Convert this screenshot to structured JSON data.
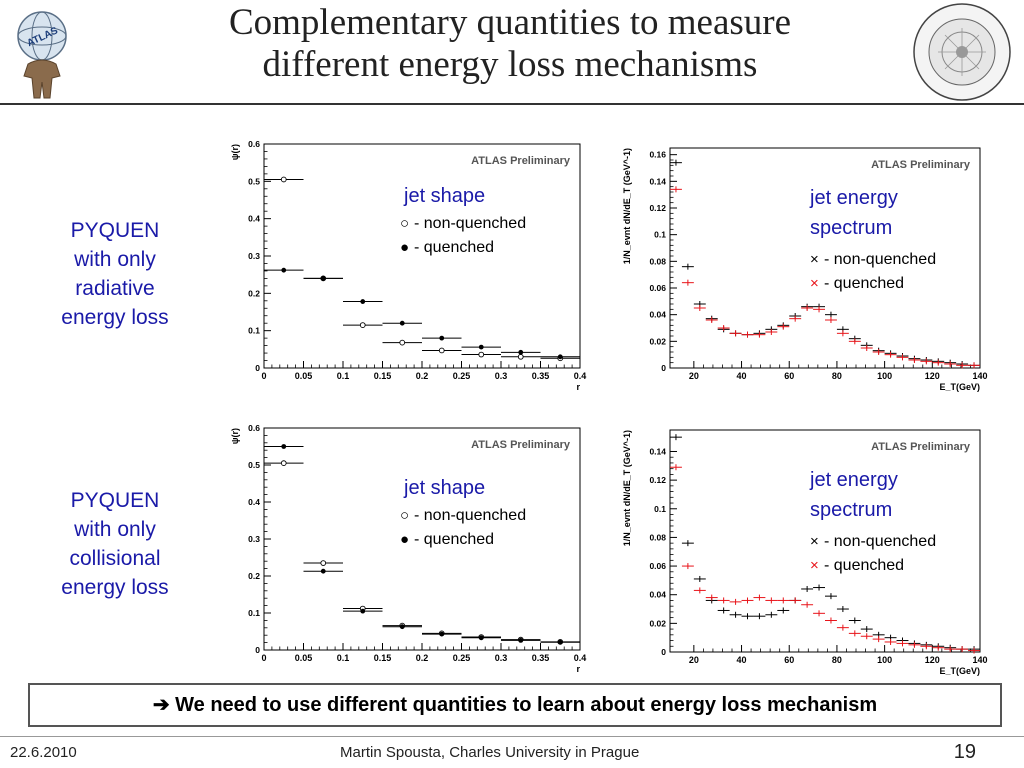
{
  "slide": {
    "title_line1": "Complementary quantities to measure",
    "title_line2": "different energy loss mechanisms",
    "row_labels": [
      "PYQUEN\nwith only\nradiative\nenergy loss",
      "PYQUEN\nwith only\ncollisional\nenergy loss"
    ],
    "callout": "➔ We need to use different quantities to learn about energy loss mechanism",
    "footer_date": "22.6.2010",
    "footer_author": "Martin Spousta,  Charles University in Prague",
    "page_number": "19",
    "logo_left_text": "ATLAS",
    "logo_right_text": "FACULTAS MATHEMATICA PHYSICAQUE"
  },
  "colors": {
    "label_blue": "#1a1aa8",
    "quenched_red": "#e8141a",
    "marker": "#000000"
  },
  "chart_data": [
    {
      "id": "jet-shape-radiative",
      "type": "scatter",
      "ylabel": "ψ(r)",
      "xlabel": "r",
      "xlim": [
        0,
        0.4
      ],
      "ylim": [
        0,
        0.6
      ],
      "xticks": [
        0,
        0.05,
        0.1,
        0.15,
        0.2,
        0.25,
        0.3,
        0.35,
        0.4
      ],
      "yticks": [
        0,
        0.1,
        0.2,
        0.3,
        0.4,
        0.5,
        0.6
      ],
      "x_tick_labels": [
        "0",
        "0.05",
        "0.1",
        "0.15",
        "0.2",
        "0.25",
        "0.3",
        "0.35",
        "0.4"
      ],
      "y_tick_labels": [
        "0",
        "0.1",
        "0.2",
        "0.3",
        "0.4",
        "0.5",
        "0.6"
      ],
      "annotation": "ATLAS Preliminary",
      "legend_title": "jet shape",
      "x": [
        0.025,
        0.075,
        0.125,
        0.175,
        0.225,
        0.275,
        0.325,
        0.375
      ],
      "series": [
        {
          "name": "- non-quenched",
          "symbol": "○",
          "marker": "open-circle",
          "values": [
            0.505,
            0.24,
            0.115,
            0.068,
            0.047,
            0.036,
            0.03,
            0.026
          ]
        },
        {
          "name": "- quenched",
          "symbol": "●",
          "marker": "filled-circle",
          "values": [
            0.262,
            0.24,
            0.178,
            0.12,
            0.08,
            0.056,
            0.042,
            0.03
          ]
        }
      ],
      "grid": false,
      "legend_position": "top-right"
    },
    {
      "id": "jet-energy-radiative",
      "type": "scatter",
      "ylabel": "1/N_evnt dN/dE_T (GeV^-1)",
      "xlabel": "E_T(GeV)",
      "xlim": [
        10,
        140
      ],
      "ylim": [
        0,
        0.165
      ],
      "xticks": [
        20,
        40,
        60,
        80,
        100,
        120,
        140
      ],
      "yticks": [
        0,
        0.02,
        0.04,
        0.06,
        0.08,
        0.1,
        0.12,
        0.14,
        0.16
      ],
      "x_tick_labels": [
        "20",
        "40",
        "60",
        "80",
        "100",
        "120",
        "140"
      ],
      "y_tick_labels": [
        "0",
        "0.02",
        "0.04",
        "0.06",
        "0.08",
        "0.1",
        "0.12",
        "0.14",
        "0.16"
      ],
      "annotation": "ATLAS Preliminary",
      "legend_title": "jet energy spectrum",
      "x": [
        12.5,
        17.5,
        22.5,
        27.5,
        32.5,
        37.5,
        42.5,
        47.5,
        52.5,
        57.5,
        62.5,
        67.5,
        72.5,
        77.5,
        82.5,
        87.5,
        92.5,
        97.5,
        102.5,
        107.5,
        112.5,
        117.5,
        122.5,
        127.5,
        132.5,
        137.5
      ],
      "series": [
        {
          "name": "- non-quenched",
          "symbol": "×",
          "marker": "black-cross",
          "values": [
            0.154,
            0.076,
            0.048,
            0.037,
            0.029,
            0.026,
            0.025,
            0.026,
            0.029,
            0.032,
            0.039,
            0.046,
            0.046,
            0.04,
            0.029,
            0.022,
            0.017,
            0.013,
            0.011,
            0.009,
            0.007,
            0.006,
            0.005,
            0.004,
            0.003,
            0.002
          ]
        },
        {
          "name": "- quenched",
          "symbol": "×",
          "marker": "red-cross",
          "values": [
            0.134,
            0.064,
            0.045,
            0.036,
            0.03,
            0.026,
            0.025,
            0.025,
            0.027,
            0.031,
            0.037,
            0.045,
            0.044,
            0.036,
            0.026,
            0.02,
            0.015,
            0.012,
            0.01,
            0.008,
            0.006,
            0.005,
            0.004,
            0.003,
            0.002,
            0.002
          ]
        }
      ],
      "grid": false,
      "legend_position": "top-right"
    },
    {
      "id": "jet-shape-collisional",
      "type": "scatter",
      "ylabel": "ψ(r)",
      "xlabel": "r",
      "xlim": [
        0,
        0.4
      ],
      "ylim": [
        0,
        0.6
      ],
      "xticks": [
        0,
        0.05,
        0.1,
        0.15,
        0.2,
        0.25,
        0.3,
        0.35,
        0.4
      ],
      "yticks": [
        0,
        0.1,
        0.2,
        0.3,
        0.4,
        0.5,
        0.6
      ],
      "x_tick_labels": [
        "0",
        "0.05",
        "0.1",
        "0.15",
        "0.2",
        "0.25",
        "0.3",
        "0.35",
        "0.4"
      ],
      "y_tick_labels": [
        "0",
        "0.1",
        "0.2",
        "0.3",
        "0.4",
        "0.5",
        "0.6"
      ],
      "annotation": "ATLAS Preliminary",
      "legend_title": "jet shape",
      "x": [
        0.025,
        0.075,
        0.125,
        0.175,
        0.225,
        0.275,
        0.325,
        0.375
      ],
      "series": [
        {
          "name": "- non-quenched",
          "symbol": "○",
          "marker": "open-circle",
          "values": [
            0.505,
            0.235,
            0.112,
            0.066,
            0.045,
            0.035,
            0.028,
            0.022
          ]
        },
        {
          "name": "- quenched",
          "symbol": "●",
          "marker": "filled-circle",
          "values": [
            0.55,
            0.213,
            0.105,
            0.063,
            0.043,
            0.033,
            0.026,
            0.021
          ]
        }
      ],
      "grid": false,
      "legend_position": "top-right"
    },
    {
      "id": "jet-energy-collisional",
      "type": "scatter",
      "ylabel": "1/N_evnt dN/dE_T (GeV^-1)",
      "xlabel": "E_T(GeV)",
      "xlim": [
        10,
        140
      ],
      "ylim": [
        0,
        0.155
      ],
      "xticks": [
        20,
        40,
        60,
        80,
        100,
        120,
        140
      ],
      "yticks": [
        0,
        0.02,
        0.04,
        0.06,
        0.08,
        0.1,
        0.12,
        0.14
      ],
      "x_tick_labels": [
        "20",
        "40",
        "60",
        "80",
        "100",
        "120",
        "140"
      ],
      "y_tick_labels": [
        "0",
        "0.02",
        "0.04",
        "0.06",
        "0.08",
        "0.1",
        "0.12",
        "0.14"
      ],
      "annotation": "ATLAS Preliminary",
      "legend_title": "jet energy spectrum",
      "x": [
        12.5,
        17.5,
        22.5,
        27.5,
        32.5,
        37.5,
        42.5,
        47.5,
        52.5,
        57.5,
        62.5,
        67.5,
        72.5,
        77.5,
        82.5,
        87.5,
        92.5,
        97.5,
        102.5,
        107.5,
        112.5,
        117.5,
        122.5,
        127.5,
        132.5,
        137.5
      ],
      "series": [
        {
          "name": "- non-quenched",
          "symbol": "×",
          "marker": "black-cross",
          "values": [
            0.15,
            0.076,
            0.051,
            0.036,
            0.029,
            0.026,
            0.025,
            0.025,
            0.026,
            0.029,
            0.036,
            0.044,
            0.045,
            0.039,
            0.03,
            0.022,
            0.016,
            0.012,
            0.01,
            0.008,
            0.006,
            0.005,
            0.004,
            0.003,
            0.002,
            0.002
          ]
        },
        {
          "name": "- quenched",
          "symbol": "×",
          "marker": "red-cross",
          "values": [
            0.129,
            0.06,
            0.043,
            0.038,
            0.036,
            0.035,
            0.036,
            0.038,
            0.036,
            0.036,
            0.036,
            0.033,
            0.027,
            0.022,
            0.017,
            0.013,
            0.011,
            0.009,
            0.007,
            0.006,
            0.005,
            0.004,
            0.003,
            0.002,
            0.002,
            0.001
          ]
        }
      ],
      "grid": false,
      "legend_position": "top-right"
    }
  ]
}
